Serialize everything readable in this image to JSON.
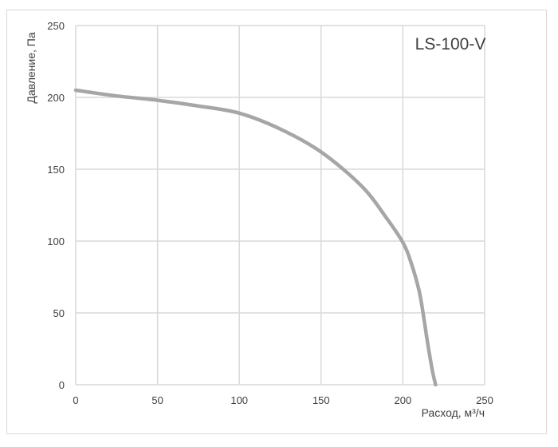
{
  "chart_data": {
    "type": "line",
    "title": "",
    "model_label": "LS-100-V",
    "xlabel": "Расход, м³/ч",
    "ylabel": "Давление, Па",
    "xlim": [
      0,
      250
    ],
    "ylim": [
      0,
      250
    ],
    "x_ticks": [
      0,
      50,
      100,
      150,
      200,
      250
    ],
    "y_ticks": [
      0,
      50,
      100,
      150,
      200,
      250
    ],
    "x_tick_labels": [
      "0",
      "50",
      "100",
      "150",
      "200",
      "250"
    ],
    "y_tick_labels": [
      "0",
      "50",
      "100",
      "150",
      "200",
      "250"
    ],
    "grid": true,
    "legend": "none",
    "colors": {
      "series_line": "#a6a6a6",
      "grid": "#d9d9d9",
      "text": "#404040"
    },
    "series": [
      {
        "x": [
          0,
          25,
          50,
          75,
          100,
          125,
          150,
          175,
          190,
          200,
          205,
          210,
          213,
          215,
          218,
          220
        ],
        "y": [
          205,
          201,
          198,
          194,
          189,
          178,
          162,
          138,
          116,
          99,
          85,
          65,
          45,
          30,
          10,
          0
        ]
      }
    ]
  }
}
